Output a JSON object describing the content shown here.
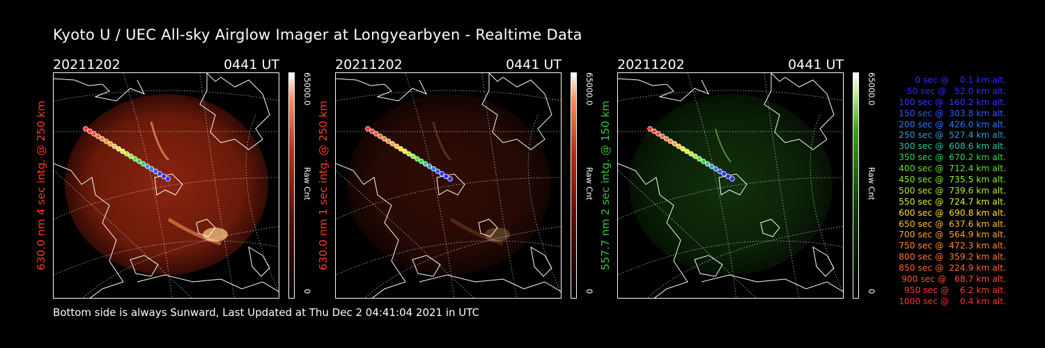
{
  "title": "Kyoto U / UEC All-sky Airglow Imager at Longyearbyen - Realtime Data",
  "panels": [
    {
      "date": "20211202",
      "time": "0441 UT",
      "side_label": "630.0 nm 4 sec intg. @ 250 km",
      "label_color": "#ff3b1f",
      "cbar_max": "65000.0",
      "cbar_mid": "Raw Cnt",
      "cbar_min": "0",
      "glow": "red",
      "brightness": 1.0
    },
    {
      "date": "20211202",
      "time": "0441 UT",
      "side_label": "630.0 nm 1 sec intg. @ 250 km",
      "label_color": "#ff3b1f",
      "cbar_max": "65000.0",
      "cbar_mid": "Raw Cnt",
      "cbar_min": "0",
      "glow": "red",
      "brightness": 0.35
    },
    {
      "date": "20211202",
      "time": "0441 UT",
      "side_label": "557.7 nm 2 sec intg. @ 150 km",
      "label_color": "#2ecc2e",
      "cbar_max": "65000.0",
      "cbar_mid": "Raw Cnt",
      "cbar_min": "0",
      "glow": "green",
      "brightness": 0.55
    }
  ],
  "footer": "Bottom side is always Sunward, Last Updated at Thu Dec  2 04:41:04 2021 in UTC",
  "legend": [
    {
      "text": "   0 sec @    0.1 km alt.",
      "color": "#2b2bff"
    },
    {
      "text": "  50 sec @   52.0 km alt.",
      "color": "#2b2bff"
    },
    {
      "text": " 100 sec @  160.2 km alt.",
      "color": "#2b3cff"
    },
    {
      "text": " 150 sec @  303.8 km alt.",
      "color": "#2b5cff"
    },
    {
      "text": " 200 sec @  426.0 km alt.",
      "color": "#2b7cff"
    },
    {
      "text": " 250 sec @  527.4 km alt.",
      "color": "#2f9fd0"
    },
    {
      "text": " 300 sec @  608.6 km alt.",
      "color": "#2ec9a0"
    },
    {
      "text": " 350 sec @  670.2 km alt.",
      "color": "#33d84a"
    },
    {
      "text": " 400 sec @  712.4 km alt.",
      "color": "#5ee62e"
    },
    {
      "text": " 450 sec @  735.5 km alt.",
      "color": "#8ef02e"
    },
    {
      "text": " 500 sec @  739.6 km alt.",
      "color": "#b6f22e"
    },
    {
      "text": " 550 sec @  724.7 km alt.",
      "color": "#e4f02e"
    },
    {
      "text": " 600 sec @  690.8 km alt.",
      "color": "#ffe02e"
    },
    {
      "text": " 650 sec @  637.6 km alt.",
      "color": "#ffc02e"
    },
    {
      "text": " 700 sec @  564.9 km alt.",
      "color": "#ffa62e"
    },
    {
      "text": " 750 sec @  472.3 km alt.",
      "color": "#ff8e2e"
    },
    {
      "text": " 800 sec @  359.2 km alt.",
      "color": "#ff7a2e"
    },
    {
      "text": " 850 sec @  224.9 km alt.",
      "color": "#ff662e"
    },
    {
      "text": " 900 sec @   68.7 km alt.",
      "color": "#ff502e"
    },
    {
      "text": " 950 sec @    6.2 km alt.",
      "color": "#ff3e2e"
    },
    {
      "text": "1000 sec @    0.4 km alt.",
      "color": "#ff2e2e"
    }
  ]
}
